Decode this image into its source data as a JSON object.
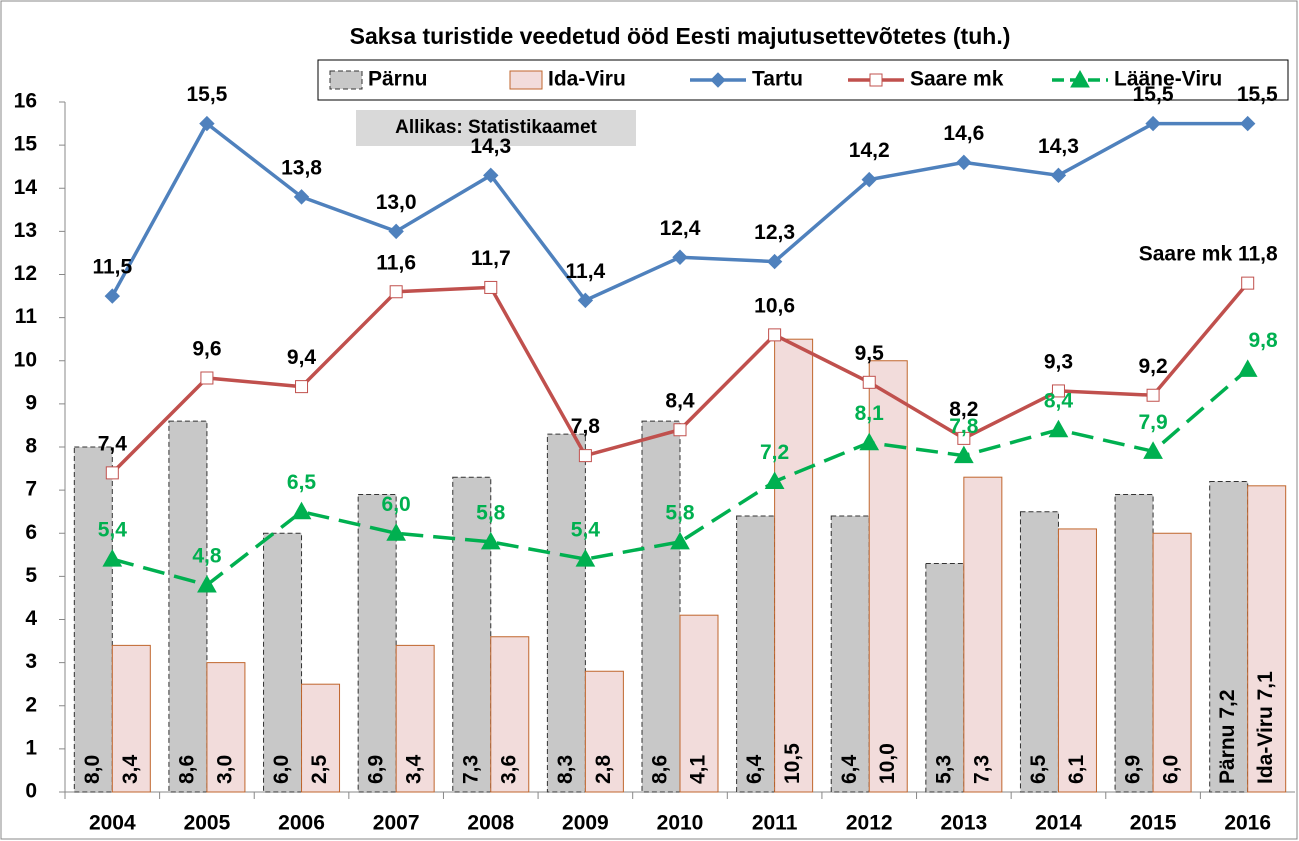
{
  "chart_data": {
    "type": "combo",
    "title": "Saksa turistide veedetud ööd Eesti majutusettevõtetes (tuh.)",
    "annotation": "Allikas: Statistikaamet",
    "categories": [
      "2004",
      "2005",
      "2006",
      "2007",
      "2008",
      "2009",
      "2010",
      "2011",
      "2012",
      "2013",
      "2014",
      "2015",
      "2016"
    ],
    "ylim": [
      0,
      16
    ],
    "yticks": [
      0,
      1,
      2,
      3,
      4,
      5,
      6,
      7,
      8,
      9,
      10,
      11,
      12,
      13,
      14,
      15,
      16
    ],
    "grid": false,
    "legend": "top",
    "series": [
      {
        "name": "Pärnu",
        "type": "bar",
        "color": "#c8c8c8",
        "stroke": "#333333",
        "dash": true,
        "values": [
          8.0,
          8.6,
          6.0,
          6.9,
          7.3,
          8.3,
          8.6,
          6.4,
          6.4,
          5.3,
          6.5,
          6.9,
          7.2
        ],
        "value_labels": [
          "8,0",
          "8,6",
          "6,0",
          "6,9",
          "7,3",
          "8,3",
          "8,6",
          "6,4",
          "6,4",
          "5,3",
          "6,5",
          "6,9",
          "Pärnu 7,2"
        ]
      },
      {
        "name": "Ida-Viru",
        "type": "bar",
        "color": "#f2dcdb",
        "stroke": "#c0662d",
        "dash": false,
        "values": [
          3.4,
          3.0,
          2.5,
          3.4,
          3.6,
          2.8,
          4.1,
          10.5,
          10.0,
          7.3,
          6.1,
          6.0,
          7.1
        ],
        "value_labels": [
          "3,4",
          "3,0",
          "2,5",
          "3,4",
          "3,6",
          "2,8",
          "4,1",
          "10,5",
          "10,0",
          "7,3",
          "6,1",
          "6,0",
          "Ida-Viru 7,1"
        ]
      },
      {
        "name": "Tartu",
        "type": "line",
        "color": "#4f81bd",
        "marker": "diamond",
        "dash": false,
        "label_color": "#000000",
        "values": [
          11.5,
          15.5,
          13.8,
          13.0,
          14.3,
          11.4,
          12.4,
          12.3,
          14.2,
          14.6,
          14.3,
          15.5,
          15.5
        ],
        "value_labels": [
          "11,5",
          "15,5",
          "13,8",
          "13,0",
          "14,3",
          "11,4",
          "12,4",
          "12,3",
          "14,2",
          "14,6",
          "14,3",
          "15,5",
          "15,5"
        ]
      },
      {
        "name": "Saare mk",
        "type": "line",
        "color": "#c0504d",
        "marker": "square",
        "dash": false,
        "label_color": "#000000",
        "values": [
          7.4,
          9.6,
          9.4,
          11.6,
          11.7,
          7.8,
          8.4,
          10.6,
          9.5,
          8.2,
          9.3,
          9.2,
          11.8
        ],
        "value_labels": [
          "7,4",
          "9,6",
          "9,4",
          "11,6",
          "11,7",
          "7,8",
          "8,4",
          "10,6",
          "9,5",
          "8,2",
          "9,3",
          "9,2",
          "Saare mk 11,8"
        ]
      },
      {
        "name": "Lääne-Viru",
        "type": "line",
        "color": "#00b050",
        "marker": "triangle",
        "dash": true,
        "label_color": "#00b050",
        "values": [
          5.4,
          4.8,
          6.5,
          6.0,
          5.8,
          5.4,
          5.8,
          7.2,
          8.1,
          7.8,
          8.4,
          7.9,
          9.8
        ],
        "value_labels": [
          "5,4",
          "4,8",
          "6,5",
          "6,0",
          "5,8",
          "5,4",
          "5,8",
          "7,2",
          "8,1",
          "7,8",
          "8,4",
          "7,9",
          "9,8"
        ]
      }
    ]
  }
}
